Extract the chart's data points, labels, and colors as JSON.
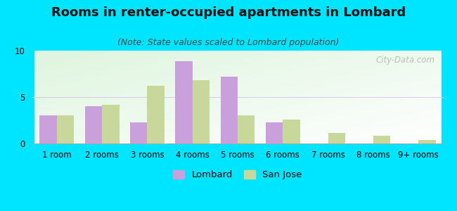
{
  "title": "Rooms in renter-occupied apartments in Lombard",
  "subtitle": "(Note: State values scaled to Lombard population)",
  "categories": [
    "1 room",
    "2 rooms",
    "3 rooms",
    "4 rooms",
    "5 rooms",
    "6 rooms",
    "7 rooms",
    "8 rooms",
    "9+ rooms"
  ],
  "lombard_values": [
    3.0,
    4.0,
    2.3,
    8.9,
    7.2,
    2.3,
    0.0,
    0.0,
    0.0
  ],
  "sanjose_values": [
    3.0,
    4.2,
    6.2,
    6.8,
    3.0,
    2.6,
    1.1,
    0.8,
    0.4
  ],
  "lombard_color": "#c9a0dc",
  "sanjose_color": "#c8d89a",
  "ylim": [
    0,
    10
  ],
  "yticks": [
    0,
    5,
    10
  ],
  "bar_width": 0.38,
  "outer_bg": "#00e5ff",
  "title_fontsize": 13,
  "subtitle_fontsize": 9,
  "axis_label_fontsize": 8.5,
  "legend_fontsize": 9.5,
  "watermark_text": "City-Data.com",
  "watermark_color": "#b0b8b0"
}
